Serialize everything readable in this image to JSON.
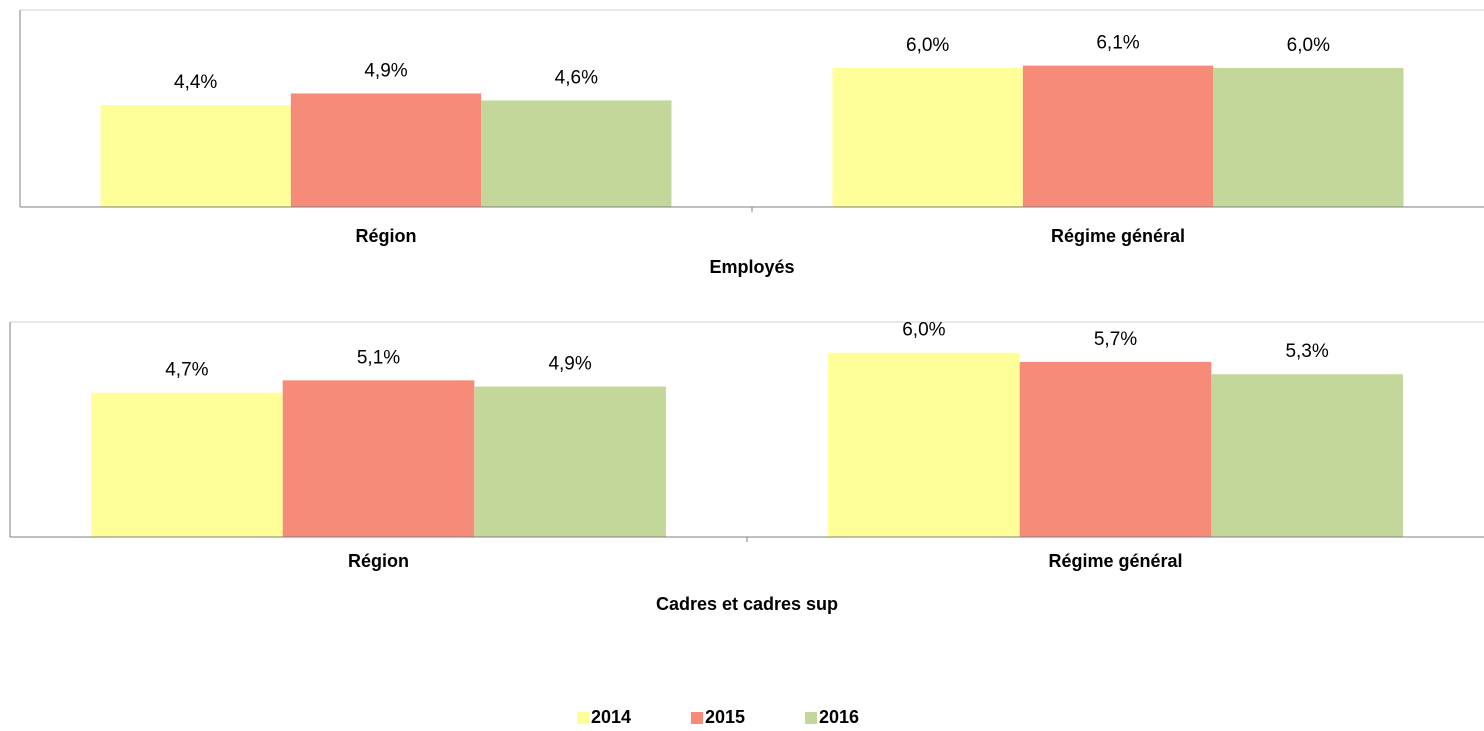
{
  "chart_data": [
    {
      "type": "bar",
      "x_label": "Employés",
      "categories": [
        "Région",
        "Régime général"
      ],
      "series": [
        {
          "name": "2014",
          "color": "#ffff99",
          "values": [
            4.4,
            6.0
          ],
          "value_labels": [
            "4,4%",
            "6,0%"
          ]
        },
        {
          "name": "2015",
          "color": "#f78b79",
          "values": [
            4.9,
            6.1
          ],
          "value_labels": [
            "4,9%",
            "6,1%"
          ]
        },
        {
          "name": "2016",
          "color": "#c4d79b",
          "values": [
            4.6,
            6.0
          ],
          "value_labels": [
            "4,6%",
            "6,0%"
          ]
        }
      ],
      "ylim": [
        0,
        8.5
      ],
      "legend": "bottom"
    },
    {
      "type": "bar",
      "x_label": "Cadres et cadres sup",
      "categories": [
        "Région",
        "Régime général"
      ],
      "series": [
        {
          "name": "2014",
          "color": "#ffff99",
          "values": [
            4.7,
            6.0
          ],
          "value_labels": [
            "4,7%",
            "6,0%"
          ]
        },
        {
          "name": "2015",
          "color": "#f78b79",
          "values": [
            5.1,
            5.7
          ],
          "value_labels": [
            "5,1%",
            "5,7%"
          ]
        },
        {
          "name": "2016",
          "color": "#c4d79b",
          "values": [
            4.9,
            5.3
          ],
          "value_labels": [
            "4,9%",
            "5,3%"
          ]
        }
      ],
      "ylim": [
        0,
        7
      ],
      "legend": "bottom"
    }
  ]
}
